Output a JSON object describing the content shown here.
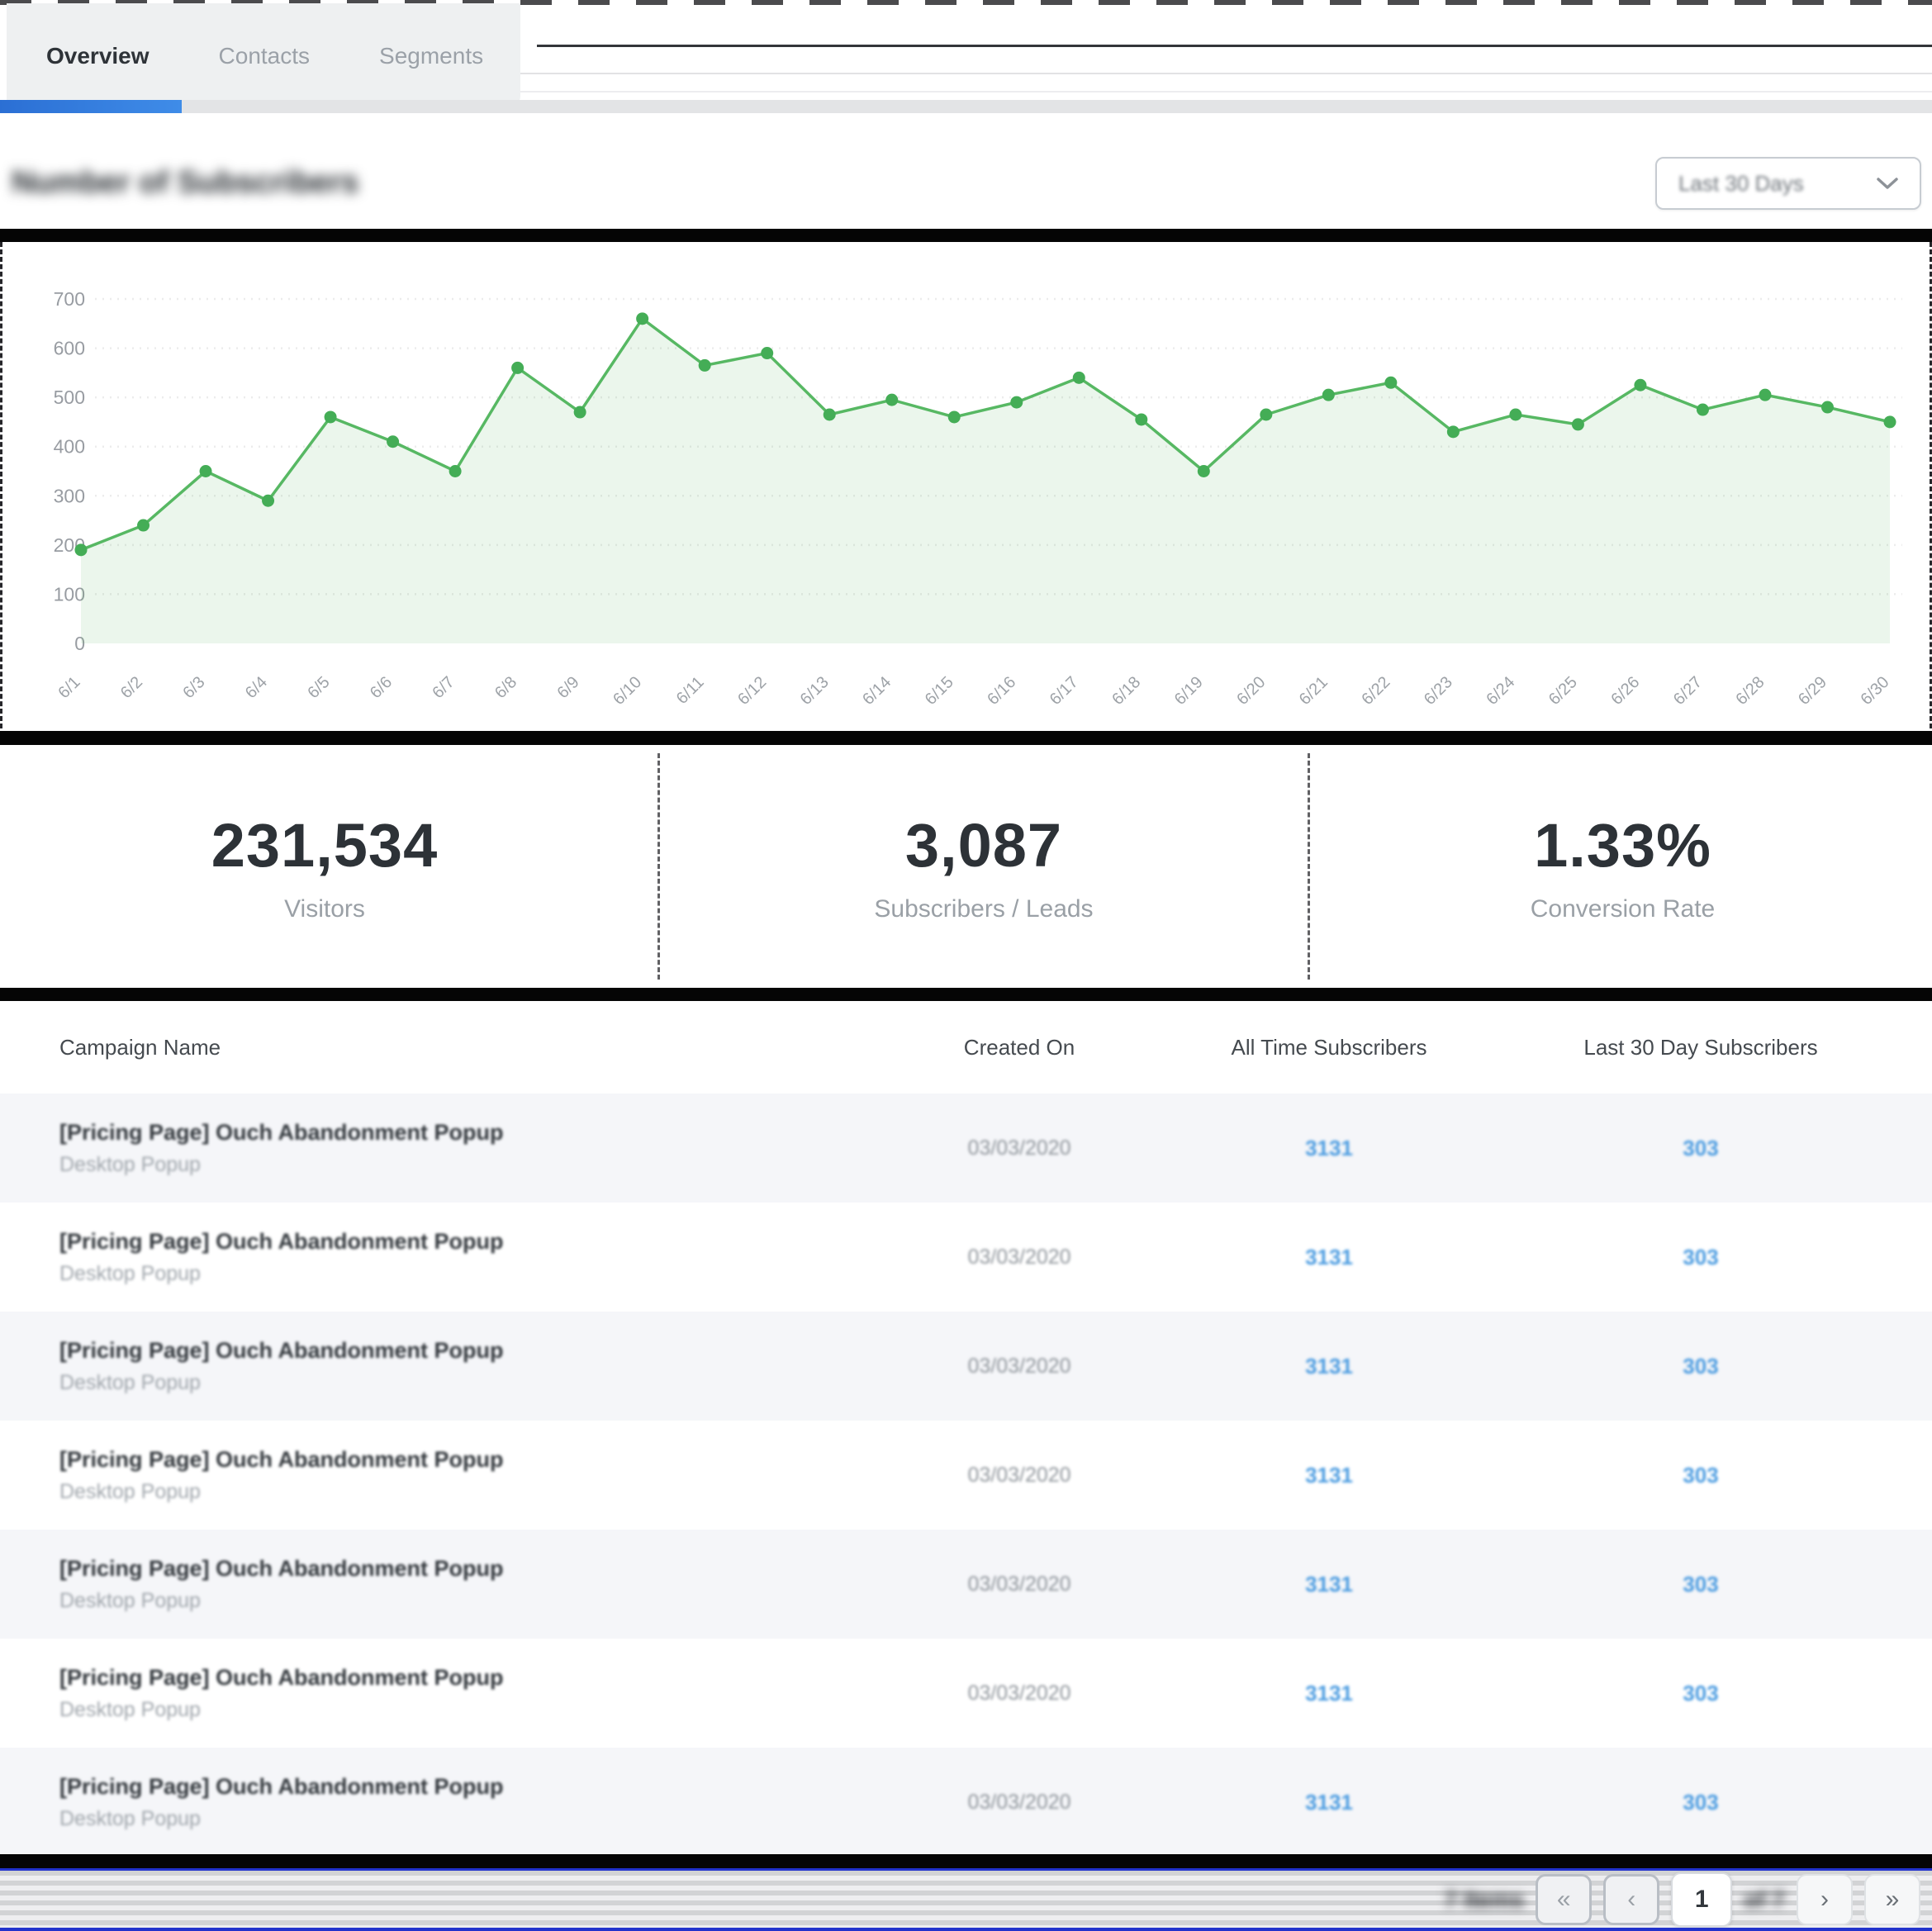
{
  "tabs": [
    {
      "label": "Overview",
      "active": true
    },
    {
      "label": "Contacts",
      "active": false
    },
    {
      "label": "Segments",
      "active": false
    }
  ],
  "chart_section": {
    "title": "Number of Subscribers",
    "range_label": "Last 30 Days"
  },
  "chart_data": {
    "type": "area",
    "title": "Number of Subscribers",
    "x": [
      "6/1",
      "6/2",
      "6/3",
      "6/4",
      "6/5",
      "6/6",
      "6/7",
      "6/8",
      "6/9",
      "6/10",
      "6/11",
      "6/12",
      "6/13",
      "6/14",
      "6/15",
      "6/16",
      "6/17",
      "6/18",
      "6/19",
      "6/20",
      "6/21",
      "6/22",
      "6/23",
      "6/24",
      "6/25",
      "6/26",
      "6/27",
      "6/28",
      "6/29",
      "6/30"
    ],
    "values": [
      190,
      240,
      350,
      290,
      460,
      410,
      350,
      560,
      470,
      660,
      565,
      590,
      465,
      495,
      460,
      490,
      540,
      455,
      350,
      465,
      505,
      530,
      430,
      465,
      445,
      525,
      475,
      505,
      480,
      450
    ],
    "ylim": [
      0,
      700
    ],
    "yticks": [
      0,
      100,
      200,
      300,
      400,
      500,
      600,
      700
    ],
    "grid": true,
    "line_color": "#57b863",
    "fill_color": "rgba(87,184,99,0.12)",
    "dot_color": "#44ad56",
    "tick_color": "#8d9298"
  },
  "stats": [
    {
      "value": "231,534",
      "label": "Visitors"
    },
    {
      "value": "3,087",
      "label": "Subscribers / Leads"
    },
    {
      "value": "1.33%",
      "label": "Conversion Rate"
    }
  ],
  "table": {
    "headers": [
      "Campaign Name",
      "Created On",
      "All Time Subscribers",
      "Last 30 Day Subscribers"
    ],
    "rows": [
      {
        "campaign": "[Pricing Page] Ouch Abandonment Popup",
        "type": "Desktop Popup",
        "created_on": "03/03/2020",
        "all_time": "3131",
        "last_30": "303"
      },
      {
        "campaign": "[Pricing Page] Ouch Abandonment Popup",
        "type": "Desktop Popup",
        "created_on": "03/03/2020",
        "all_time": "3131",
        "last_30": "303"
      },
      {
        "campaign": "[Pricing Page] Ouch Abandonment Popup",
        "type": "Desktop Popup",
        "created_on": "03/03/2020",
        "all_time": "3131",
        "last_30": "303"
      },
      {
        "campaign": "[Pricing Page] Ouch Abandonment Popup",
        "type": "Desktop Popup",
        "created_on": "03/03/2020",
        "all_time": "3131",
        "last_30": "303"
      },
      {
        "campaign": "[Pricing Page] Ouch Abandonment Popup",
        "type": "Desktop Popup",
        "created_on": "03/03/2020",
        "all_time": "3131",
        "last_30": "303"
      },
      {
        "campaign": "[Pricing Page] Ouch Abandonment Popup",
        "type": "Desktop Popup",
        "created_on": "03/03/2020",
        "all_time": "3131",
        "last_30": "303"
      },
      {
        "campaign": "[Pricing Page] Ouch Abandonment Popup",
        "type": "Desktop Popup",
        "created_on": "03/03/2020",
        "all_time": "3131",
        "last_30": "303"
      }
    ]
  },
  "pagination": {
    "items_label": "7 Items",
    "first_icon": "«",
    "prev_icon": "‹",
    "page": "1",
    "of_label": "of 7",
    "next_icon": "›",
    "last_icon": "»"
  }
}
